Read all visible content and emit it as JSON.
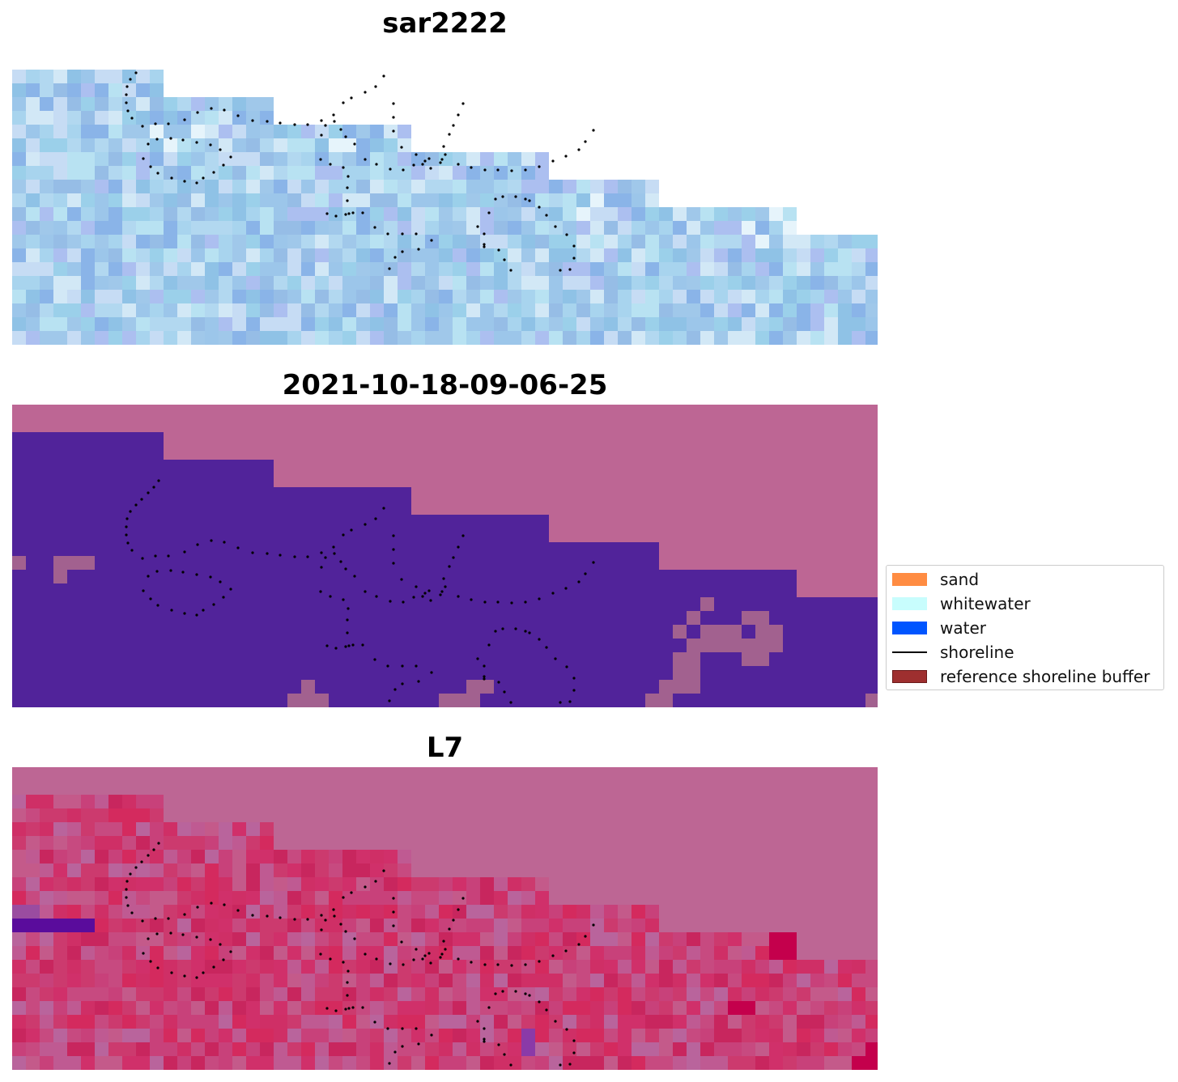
{
  "panels": [
    {
      "title": "sar2222",
      "kind": "sar"
    },
    {
      "title": "2021-10-18-09-06-25",
      "kind": "classification"
    },
    {
      "title": "L7",
      "kind": "index"
    }
  ],
  "legend": {
    "items": [
      {
        "label": "sand",
        "color": "#ff8c42",
        "type": "patch"
      },
      {
        "label": "whitewater",
        "color": "#c8fdfd",
        "type": "patch"
      },
      {
        "label": "water",
        "color": "#0055ff",
        "type": "patch"
      },
      {
        "label": "shoreline",
        "color": "#000000",
        "type": "line"
      },
      {
        "label": "reference shoreline buffer",
        "color": "#9e2f2f",
        "type": "patch"
      }
    ]
  },
  "colors": {
    "classification_background": "#bd6694",
    "classification_water": "#51239a",
    "classification_mixed": "#a2618f",
    "index_background": "#bd6694",
    "index_low": "#5a0c9c",
    "index_high": "#c4004c",
    "shoreline_dots": "#000000"
  }
}
